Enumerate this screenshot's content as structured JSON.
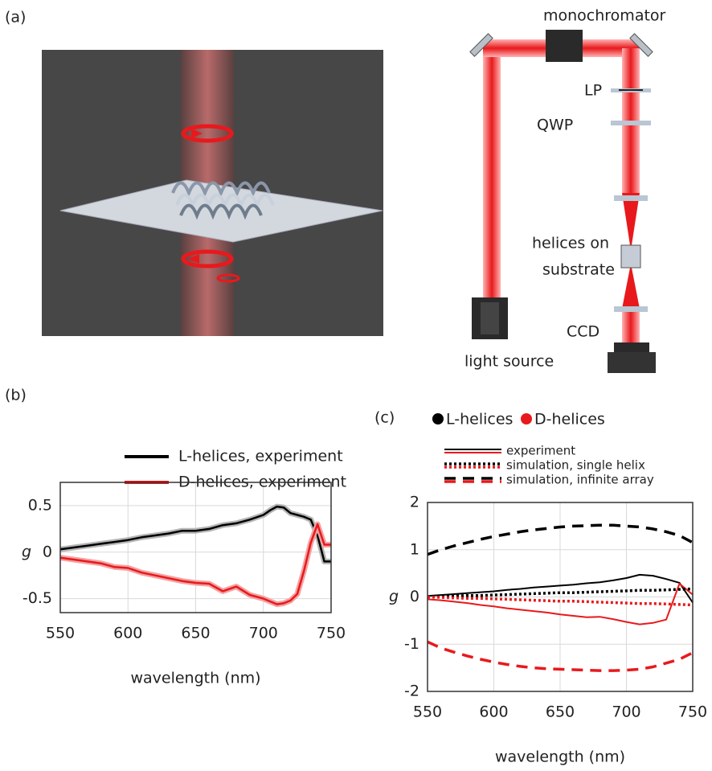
{
  "panel_a": {
    "label": "(a)",
    "setup": {
      "monochromator": "monochromator",
      "lp": "LP",
      "qwp": "QWP",
      "sample_line1": "helices on",
      "sample_line2": "substrate",
      "ccd": "CCD",
      "source": "light source"
    }
  },
  "chart_data": [
    {
      "type": "line",
      "panel_label": "(b)",
      "x_label": "wavelength (nm)",
      "y_label": "g",
      "x": [
        550,
        560,
        570,
        580,
        590,
        600,
        610,
        620,
        630,
        640,
        650,
        660,
        670,
        680,
        690,
        700,
        705,
        710,
        715,
        720,
        725,
        730,
        735,
        740,
        745,
        750
      ],
      "xlim": [
        550,
        750
      ],
      "xticks": [
        550,
        600,
        650,
        700,
        750
      ],
      "ylim": [
        -0.65,
        0.75
      ],
      "yticks": [
        0.5,
        0,
        -0.5
      ],
      "grid": true,
      "series": [
        {
          "name": "L-helices, experiment",
          "color": "#000000",
          "band_color": "#b5b5b5",
          "values": [
            0.03,
            0.05,
            0.07,
            0.09,
            0.11,
            0.13,
            0.16,
            0.18,
            0.2,
            0.23,
            0.23,
            0.25,
            0.29,
            0.31,
            0.35,
            0.4,
            0.45,
            0.49,
            0.48,
            0.42,
            0.4,
            0.38,
            0.35,
            0.18,
            -0.1,
            -0.1
          ]
        },
        {
          "name": "D-helices, experiment",
          "color": "#e8191c",
          "band_color": "#f2a3a3",
          "values": [
            -0.06,
            -0.08,
            -0.1,
            -0.12,
            -0.16,
            -0.17,
            -0.22,
            -0.25,
            -0.28,
            -0.31,
            -0.33,
            -0.34,
            -0.42,
            -0.37,
            -0.46,
            -0.5,
            -0.53,
            -0.56,
            -0.55,
            -0.52,
            -0.45,
            -0.2,
            0.1,
            0.3,
            0.08,
            0.08
          ]
        }
      ]
    },
    {
      "type": "line",
      "panel_label": "(c)",
      "x_label": "wavelength (nm)",
      "y_label": "g",
      "x": [
        550,
        560,
        570,
        580,
        590,
        600,
        610,
        620,
        630,
        640,
        650,
        660,
        670,
        680,
        690,
        700,
        710,
        720,
        730,
        740,
        750
      ],
      "xlim": [
        550,
        750
      ],
      "xticks": [
        550,
        600,
        650,
        700,
        750
      ],
      "ylim": [
        -2,
        2
      ],
      "yticks": [
        2,
        1,
        0,
        -1,
        -2
      ],
      "grid": true,
      "colors": [
        {
          "name": "L-helices",
          "color": "#000000"
        },
        {
          "name": "D-helices",
          "color": "#e8191c"
        }
      ],
      "series": [
        {
          "name": "experiment",
          "dash": "solid",
          "values": [
            [
              0.02,
              0.04,
              0.06,
              0.08,
              0.1,
              0.12,
              0.15,
              0.17,
              0.2,
              0.22,
              0.24,
              0.26,
              0.29,
              0.31,
              0.35,
              0.4,
              0.47,
              0.45,
              0.38,
              0.3,
              -0.12
            ],
            [
              -0.05,
              -0.07,
              -0.1,
              -0.13,
              -0.17,
              -0.2,
              -0.24,
              -0.27,
              -0.3,
              -0.33,
              -0.37,
              -0.4,
              -0.43,
              -0.42,
              -0.47,
              -0.53,
              -0.58,
              -0.55,
              -0.48,
              0.28,
              0.05
            ]
          ]
        },
        {
          "name": "simulation, single helix",
          "dash": "dotted",
          "values": [
            [
              0,
              0.01,
              0.02,
              0.03,
              0.03,
              0.04,
              0.05,
              0.06,
              0.07,
              0.08,
              0.09,
              0.09,
              0.1,
              0.11,
              0.12,
              0.13,
              0.14,
              0.14,
              0.15,
              0.16,
              0.17
            ],
            [
              0,
              -0.01,
              -0.02,
              -0.03,
              -0.03,
              -0.04,
              -0.05,
              -0.06,
              -0.07,
              -0.08,
              -0.09,
              -0.09,
              -0.1,
              -0.11,
              -0.12,
              -0.13,
              -0.14,
              -0.14,
              -0.15,
              -0.16,
              -0.17
            ]
          ]
        },
        {
          "name": "simulation, infinite array",
          "dash": "dashed",
          "values": [
            [
              0.9,
              1.0,
              1.08,
              1.15,
              1.22,
              1.28,
              1.33,
              1.38,
              1.42,
              1.45,
              1.48,
              1.5,
              1.51,
              1.52,
              1.52,
              1.5,
              1.48,
              1.44,
              1.38,
              1.3,
              1.15
            ],
            [
              -0.95,
              -1.08,
              -1.17,
              -1.25,
              -1.32,
              -1.38,
              -1.43,
              -1.47,
              -1.5,
              -1.52,
              -1.53,
              -1.54,
              -1.55,
              -1.56,
              -1.56,
              -1.55,
              -1.53,
              -1.48,
              -1.4,
              -1.32,
              -1.18
            ]
          ]
        }
      ]
    }
  ]
}
